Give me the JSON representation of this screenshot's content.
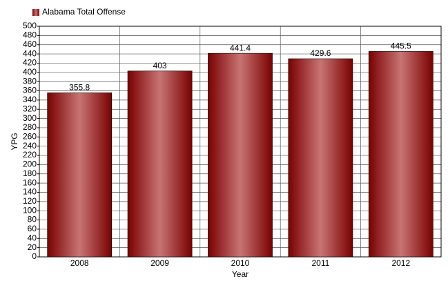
{
  "chart_data": {
    "type": "bar",
    "x_label": "Year",
    "y_label": "YPG",
    "categories": [
      "2008",
      "2009",
      "2010",
      "2011",
      "2012"
    ],
    "series": [
      {
        "name": "Alabama Total Offense",
        "color": "#7a0000",
        "values": [
          355.8,
          403,
          441.4,
          429.6,
          445.5
        ]
      }
    ],
    "ylim": [
      0,
      500
    ],
    "yticks": [
      0,
      20,
      40,
      60,
      80,
      100,
      120,
      140,
      160,
      180,
      200,
      220,
      240,
      260,
      280,
      300,
      320,
      340,
      360,
      380,
      400,
      420,
      440,
      460,
      480,
      500
    ],
    "grid": true,
    "legend": "top-left"
  }
}
